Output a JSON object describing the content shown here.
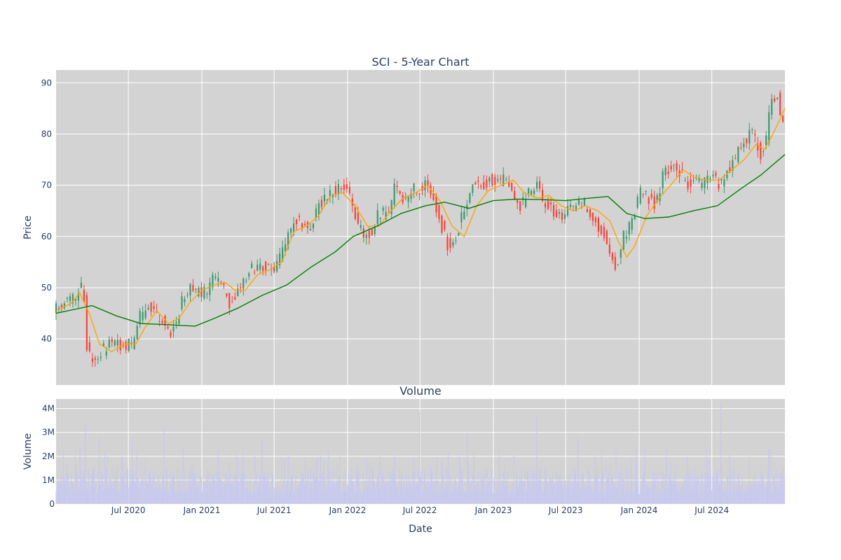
{
  "chart_data": [
    {
      "type": "candlestick",
      "title": "SCI - 5-Year Chart",
      "ylabel": "Price",
      "ylim": [
        31,
        92.5
      ],
      "y_ticks": [
        "40",
        "50",
        "60",
        "70",
        "80",
        "90"
      ],
      "x_range": [
        "2020-01-02",
        "2024-12-31"
      ],
      "x_ticks": [
        "Jul 2020",
        "Jan 2021",
        "Jul 2021",
        "Jan 2022",
        "Jul 2022",
        "Jan 2023",
        "Jul 2023",
        "Jan 2024",
        "Jul 2024"
      ],
      "grid": true,
      "legend": "none",
      "colors": {
        "up": "#3d9970",
        "down": "#ff4136",
        "ma_short": "#ffa500",
        "ma_long": "#008000",
        "plot_bg": "#d3d3d3",
        "grid": "#ffffff"
      },
      "series": [
        {
          "role": "close-approx",
          "x": [
            "2020-01-02",
            "2020-02-01",
            "2020-02-20",
            "2020-03-10",
            "2020-03-20",
            "2020-04-10",
            "2020-05-01",
            "2020-05-20",
            "2020-06-15",
            "2020-07-10",
            "2020-08-01",
            "2020-08-20",
            "2020-09-10",
            "2020-09-25",
            "2020-10-15",
            "2020-10-30",
            "2020-11-15",
            "2020-12-01",
            "2020-12-20",
            "2021-01-10",
            "2021-02-01",
            "2021-02-20",
            "2021-03-10",
            "2021-04-01",
            "2021-04-20",
            "2021-05-10",
            "2021-06-01",
            "2021-06-20",
            "2021-07-10",
            "2021-07-30",
            "2021-08-20",
            "2021-09-10",
            "2021-10-01",
            "2021-10-20",
            "2021-11-10",
            "2021-12-01",
            "2021-12-20",
            "2022-01-05",
            "2022-01-25",
            "2022-02-10",
            "2022-03-01",
            "2022-03-20",
            "2022-04-10",
            "2022-05-01",
            "2022-05-20",
            "2022-06-10",
            "2022-07-01",
            "2022-07-20",
            "2022-08-05",
            "2022-08-20",
            "2022-09-10",
            "2022-09-30",
            "2022-10-20",
            "2022-11-10",
            "2022-12-01",
            "2022-12-20",
            "2023-01-10",
            "2023-02-01",
            "2023-02-20",
            "2023-03-10",
            "2023-04-01",
            "2023-04-20",
            "2023-05-10",
            "2023-06-01",
            "2023-06-20",
            "2023-07-10",
            "2023-08-01",
            "2023-08-20",
            "2023-09-10",
            "2023-10-01",
            "2023-10-20",
            "2023-11-05",
            "2023-11-20",
            "2023-12-10",
            "2024-01-01",
            "2024-01-20",
            "2024-02-10",
            "2024-03-01",
            "2024-03-20",
            "2024-04-10",
            "2024-05-01",
            "2024-05-20",
            "2024-06-10",
            "2024-07-01",
            "2024-07-20",
            "2024-08-10",
            "2024-09-01",
            "2024-09-20",
            "2024-10-10",
            "2024-10-30",
            "2024-11-10",
            "2024-11-25",
            "2024-12-10",
            "2024-12-31"
          ],
          "values": [
            46,
            47.5,
            48.5,
            51,
            37,
            36.5,
            38,
            39.5,
            38.5,
            39,
            45,
            46,
            44.5,
            44,
            41,
            43.5,
            48,
            50,
            49,
            49,
            52,
            51,
            47,
            49.5,
            52,
            54,
            54.5,
            53,
            55,
            58,
            64,
            62,
            62,
            66,
            68,
            69,
            70,
            68,
            63,
            60,
            61,
            65,
            64,
            70,
            67,
            69,
            69.5,
            71,
            67,
            63,
            58,
            60,
            66,
            70,
            69.5,
            71,
            70,
            72,
            68,
            66,
            69,
            70,
            66,
            65,
            64,
            65,
            66,
            66.5,
            63,
            61,
            56,
            54,
            60,
            62,
            68.5,
            68,
            66,
            72,
            74,
            73,
            70,
            71,
            70,
            72,
            70,
            73,
            76,
            79,
            80,
            76,
            77,
            86,
            88,
            80
          ]
        },
        {
          "name": "",
          "role": "moving-average-short",
          "x": [
            "2020-01-02",
            "2020-02-10",
            "2020-03-01",
            "2020-03-25",
            "2020-04-20",
            "2020-05-20",
            "2020-06-20",
            "2020-07-20",
            "2020-08-10",
            "2020-09-10",
            "2020-10-10",
            "2020-11-05",
            "2020-12-01",
            "2021-01-01",
            "2021-02-01",
            "2021-03-01",
            "2021-03-25",
            "2021-04-20",
            "2021-05-20",
            "2021-06-20",
            "2021-07-20",
            "2021-08-20",
            "2021-09-20",
            "2021-10-20",
            "2021-11-20",
            "2021-12-20",
            "2022-01-20",
            "2022-02-20",
            "2022-03-20",
            "2022-04-20",
            "2022-05-20",
            "2022-06-20",
            "2022-07-20",
            "2022-08-20",
            "2022-09-20",
            "2022-10-20",
            "2022-11-20",
            "2022-12-20",
            "2023-01-20",
            "2023-02-20",
            "2023-03-20",
            "2023-04-20",
            "2023-05-20",
            "2023-06-20",
            "2023-07-20",
            "2023-08-20",
            "2023-09-20",
            "2023-10-20",
            "2023-11-10",
            "2023-12-01",
            "2023-12-20",
            "2024-01-20",
            "2024-02-20",
            "2024-03-20",
            "2024-04-20",
            "2024-05-20",
            "2024-06-20",
            "2024-07-20",
            "2024-08-20",
            "2024-09-20",
            "2024-10-20",
            "2024-11-10",
            "2024-12-01",
            "2024-12-31"
          ],
          "values": [
            45.5,
            47,
            49,
            45,
            39,
            37.5,
            39,
            39,
            42,
            45.5,
            43,
            44,
            47,
            49.5,
            50.5,
            51,
            49.5,
            49.5,
            52.5,
            53.5,
            55,
            61,
            62,
            64,
            68,
            68.5,
            66,
            62,
            62,
            65,
            67.5,
            68.5,
            70,
            67,
            62,
            60,
            66,
            69,
            70,
            71,
            68.5,
            67.5,
            68,
            66,
            65,
            66,
            65,
            63,
            59,
            56,
            58,
            64,
            67.5,
            70,
            73,
            71.5,
            71,
            71,
            73,
            75,
            78,
            77,
            80,
            85
          ]
        },
        {
          "name": "",
          "role": "moving-average-long",
          "x": [
            "2020-01-02",
            "2020-04-01",
            "2020-06-01",
            "2020-08-01",
            "2020-10-01",
            "2020-12-15",
            "2021-02-01",
            "2021-04-01",
            "2021-06-01",
            "2021-08-01",
            "2021-10-01",
            "2021-12-01",
            "2022-01-15",
            "2022-03-15",
            "2022-05-15",
            "2022-07-15",
            "2022-09-01",
            "2022-11-01",
            "2023-01-01",
            "2023-03-01",
            "2023-05-01",
            "2023-07-01",
            "2023-09-01",
            "2023-10-15",
            "2023-12-01",
            "2024-01-15",
            "2024-03-15",
            "2024-05-15",
            "2024-07-15",
            "2024-09-15",
            "2024-11-01",
            "2024-12-31"
          ],
          "values": [
            45,
            46.5,
            44.5,
            43,
            42.8,
            42.5,
            44,
            46,
            48.5,
            50.5,
            54,
            57,
            60,
            62,
            64.5,
            66,
            66.7,
            65.5,
            67,
            67.3,
            67.2,
            67,
            67.5,
            67.8,
            64.5,
            63.5,
            63.8,
            65,
            66,
            69.5,
            72,
            76
          ]
        }
      ]
    },
    {
      "type": "bar",
      "title": "Volume",
      "xlabel": "Date",
      "ylabel": "Volume",
      "ylim": [
        0,
        4400000
      ],
      "y_ticks": [
        "0",
        "1M",
        "2M",
        "3M",
        "4M"
      ],
      "x_range": [
        "2020-01-02",
        "2024-12-31"
      ],
      "x_ticks": [
        "Jul 2020",
        "Jan 2021",
        "Jul 2021",
        "Jan 2022",
        "Jul 2022",
        "Jan 2023",
        "Jul 2023",
        "Jan 2024",
        "Jul 2024"
      ],
      "grid": true,
      "colors": {
        "bar": "#c8c8f0",
        "plot_bg": "#d3d3d3",
        "grid": "#ffffff"
      },
      "spikes": {
        "x": [
          "2020-03-02",
          "2020-03-16",
          "2020-04-20",
          "2020-07-10",
          "2020-09-28",
          "2021-06-01",
          "2022-06-30",
          "2022-10-28",
          "2023-04-20",
          "2023-08-01",
          "2024-07-24"
        ],
        "values": [
          2400000,
          3400000,
          2800000,
          2700000,
          3200000,
          2700000,
          3900000,
          3000000,
          3700000,
          2800000,
          4200000
        ]
      },
      "typical_range": [
        400000,
        1500000
      ]
    }
  ]
}
